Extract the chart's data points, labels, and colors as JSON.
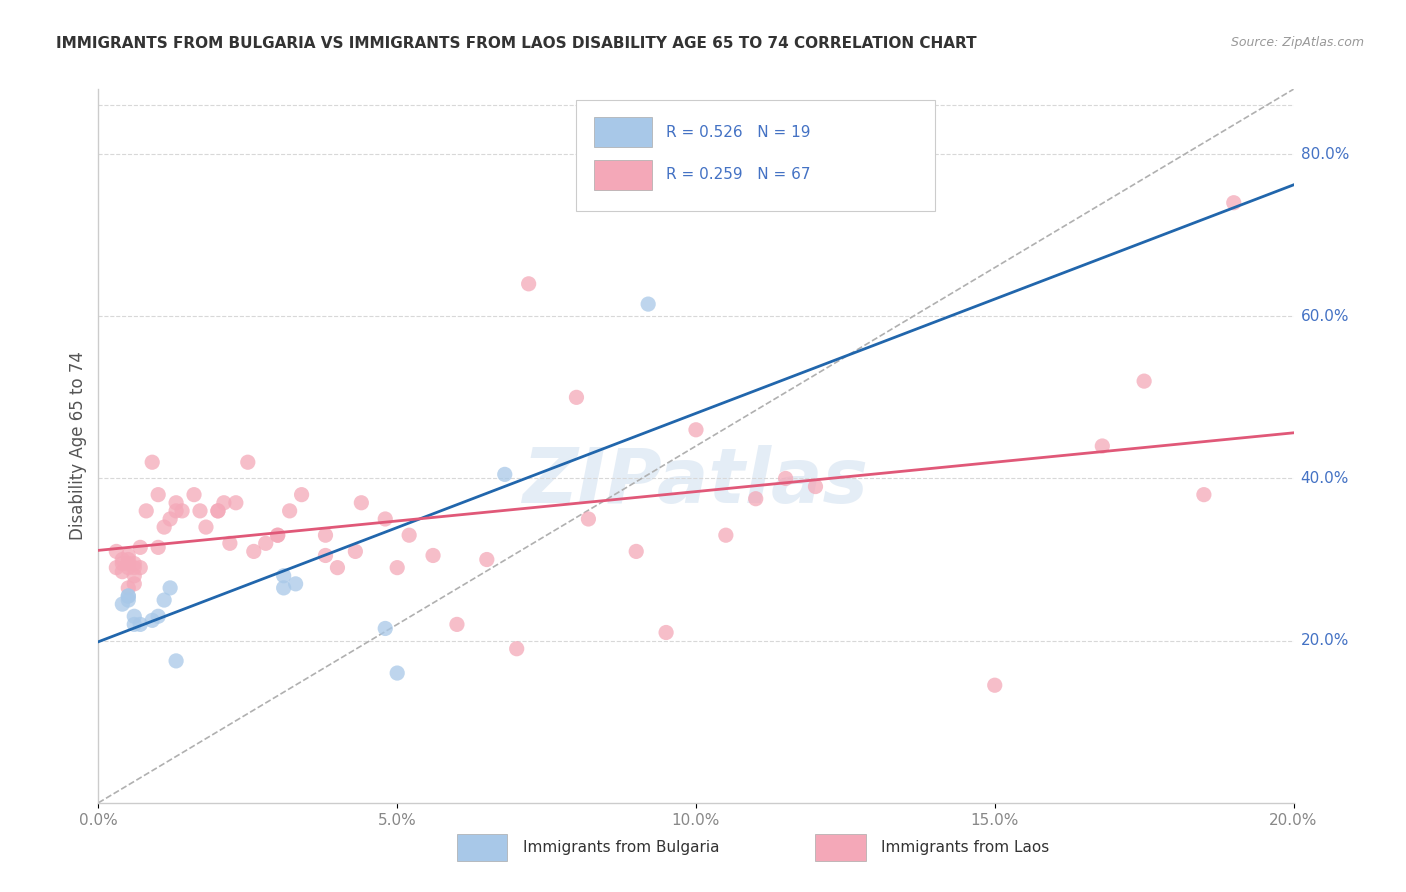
{
  "title": "IMMIGRANTS FROM BULGARIA VS IMMIGRANTS FROM LAOS DISABILITY AGE 65 TO 74 CORRELATION CHART",
  "source": "Source: ZipAtlas.com",
  "ylabel": "Disability Age 65 to 74",
  "legend_label1": "Immigrants from Bulgaria",
  "legend_label2": "Immigrants from Laos",
  "r1": 0.526,
  "n1": 19,
  "r2": 0.259,
  "n2": 67,
  "xlim": [
    0.0,
    0.2
  ],
  "ylim": [
    0.0,
    0.88
  ],
  "xticks": [
    0.0,
    0.05,
    0.1,
    0.15,
    0.2
  ],
  "yticks": [
    0.2,
    0.4,
    0.6,
    0.8
  ],
  "color_bulgaria": "#a8c8e8",
  "color_laos": "#f4a8b8",
  "color_trendline_bulgaria": "#2166ac",
  "color_trendline_laos": "#e05878",
  "color_dashed": "#b0b0b0",
  "scatter_bulgaria_x": [
    0.004,
    0.005,
    0.005,
    0.005,
    0.006,
    0.006,
    0.007,
    0.009,
    0.01,
    0.011,
    0.012,
    0.013,
    0.031,
    0.031,
    0.033,
    0.048,
    0.05,
    0.068,
    0.092
  ],
  "scatter_bulgaria_y": [
    0.245,
    0.255,
    0.255,
    0.25,
    0.22,
    0.23,
    0.22,
    0.225,
    0.23,
    0.25,
    0.265,
    0.175,
    0.28,
    0.265,
    0.27,
    0.215,
    0.16,
    0.405,
    0.615
  ],
  "scatter_laos_x": [
    0.003,
    0.003,
    0.004,
    0.004,
    0.004,
    0.005,
    0.005,
    0.005,
    0.005,
    0.005,
    0.006,
    0.006,
    0.006,
    0.006,
    0.007,
    0.007,
    0.008,
    0.009,
    0.01,
    0.01,
    0.011,
    0.012,
    0.013,
    0.013,
    0.014,
    0.016,
    0.017,
    0.018,
    0.02,
    0.02,
    0.021,
    0.022,
    0.023,
    0.025,
    0.026,
    0.028,
    0.03,
    0.03,
    0.032,
    0.034,
    0.038,
    0.038,
    0.04,
    0.043,
    0.044,
    0.048,
    0.05,
    0.052,
    0.056,
    0.06,
    0.065,
    0.07,
    0.072,
    0.08,
    0.082,
    0.09,
    0.095,
    0.1,
    0.105,
    0.11,
    0.115,
    0.12,
    0.15,
    0.168,
    0.175,
    0.185,
    0.19
  ],
  "scatter_laos_y": [
    0.29,
    0.31,
    0.285,
    0.295,
    0.3,
    0.265,
    0.3,
    0.29,
    0.295,
    0.305,
    0.27,
    0.28,
    0.29,
    0.295,
    0.315,
    0.29,
    0.36,
    0.42,
    0.315,
    0.38,
    0.34,
    0.35,
    0.36,
    0.37,
    0.36,
    0.38,
    0.36,
    0.34,
    0.36,
    0.36,
    0.37,
    0.32,
    0.37,
    0.42,
    0.31,
    0.32,
    0.33,
    0.33,
    0.36,
    0.38,
    0.305,
    0.33,
    0.29,
    0.31,
    0.37,
    0.35,
    0.29,
    0.33,
    0.305,
    0.22,
    0.3,
    0.19,
    0.64,
    0.5,
    0.35,
    0.31,
    0.21,
    0.46,
    0.33,
    0.375,
    0.4,
    0.39,
    0.145,
    0.44,
    0.52,
    0.38,
    0.74
  ],
  "watermark": "ZIPatlas",
  "background_color": "#ffffff",
  "grid_color": "#d8d8d8",
  "legend_text_color": "#4472c4",
  "axis_color": "#cccccc",
  "title_color": "#333333",
  "source_color": "#999999",
  "ylabel_color": "#555555",
  "tick_color": "#888888"
}
